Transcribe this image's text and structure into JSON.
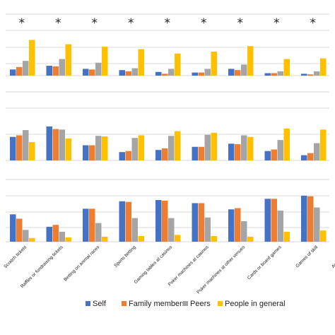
{
  "chart_data": {
    "type": "bar",
    "grid": true,
    "categories": [
      "Scratch tickets",
      "Raffles or fundraising tickets",
      "Betting on animal races",
      "Sports betting",
      "Gaming tables at casinos",
      "Poker machines at casinos",
      "Poker machines at other venues",
      "Cards or board games",
      "Games of skill",
      "Arcade games"
    ],
    "legend": {
      "placement": "bottom",
      "entries": [
        {
          "name": "Self",
          "color": "#4472C4"
        },
        {
          "name": "Family members",
          "color": "#ED7D31"
        },
        {
          "name": "Peers",
          "color": "#A5A5A5"
        },
        {
          "name": "People in general",
          "color": "#FFC000"
        }
      ]
    },
    "panels": [
      {
        "ylim": [
          0,
          100
        ],
        "significance_marker": "*",
        "series": [
          {
            "name": "Self",
            "values": [
              10,
              16,
              11,
              9,
              6,
              5,
              11,
              4,
              3,
              4
            ]
          },
          {
            "name": "Family members",
            "values": [
              14,
              15,
              10,
              7,
              3,
              5,
              9,
              4,
              2,
              3
            ]
          },
          {
            "name": "Peers",
            "values": [
              24,
              27,
              21,
              12,
              11,
              11,
              18,
              7,
              7,
              9
            ]
          },
          {
            "name": "People in general",
            "values": [
              58,
              51,
              47,
              43,
              36,
              39,
              48,
              27,
              28,
              30
            ]
          }
        ]
      },
      {
        "ylim": [
          0,
          100
        ],
        "series": [
          {
            "name": "Self",
            "values": [
              45,
              65,
              29,
              16,
              20,
              26,
              32,
              18,
              10,
              13
            ]
          },
          {
            "name": "Family members",
            "values": [
              48,
              60,
              29,
              18,
              23,
              26,
              31,
              21,
              14,
              17
            ]
          },
          {
            "name": "Peers",
            "values": [
              58,
              59,
              47,
              43,
              47,
              49,
              48,
              39,
              33,
              37
            ]
          },
          {
            "name": "People in general",
            "values": [
              35,
              42,
              46,
              48,
              56,
              53,
              45,
              61,
              59,
              61
            ]
          }
        ]
      },
      {
        "ylim": [
          0,
          100
        ],
        "series": [
          {
            "name": "Self",
            "values": [
              44,
              24,
              53,
              65,
              67,
              62,
              52,
              69,
              74,
              66
            ]
          },
          {
            "name": "Family members",
            "values": [
              37,
              27,
              53,
              64,
              66,
              62,
              54,
              69,
              73,
              65
            ]
          },
          {
            "name": "Peers",
            "values": [
              19,
              16,
              30,
              38,
              38,
              39,
              33,
              50,
              55,
              49
            ]
          },
          {
            "name": "People in general",
            "values": [
              6,
              7,
              8,
              9,
              11,
              9,
              8,
              16,
              18,
              19
            ]
          }
        ]
      }
    ]
  }
}
